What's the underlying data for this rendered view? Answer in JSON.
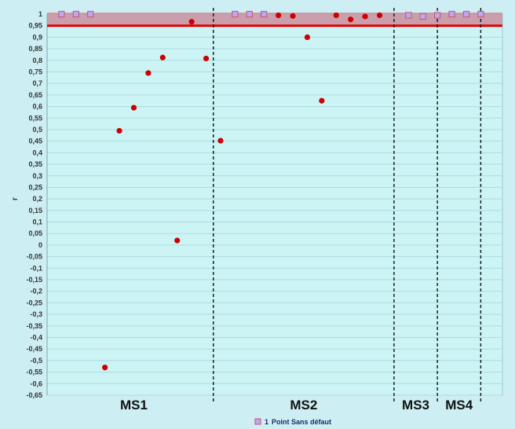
{
  "chart_data": {
    "type": "scatter",
    "title": "",
    "xlabel": "",
    "ylabel": "r",
    "ylim": [
      -0.65,
      1.0
    ],
    "ytick_step": 0.05,
    "grid": true,
    "threshold": 0.95,
    "band": [
      0.95,
      1.0
    ],
    "colors": {
      "background": "#cdeef3",
      "grid": "#a9dbe2",
      "band": "#c98e9c",
      "threshold": "#e00000",
      "faulty_point": "#cc0000",
      "ok_marker_fill": "#b9a8f2",
      "ok_marker_stroke": "#d0506e"
    },
    "sections": [
      {
        "label": "MS1",
        "start": 0.5,
        "end": 11.5
      },
      {
        "label": "MS2",
        "start": 11.5,
        "end": 24
      },
      {
        "label": "MS3",
        "start": 24,
        "end": 27
      },
      {
        "label": "MS4",
        "start": 27,
        "end": 30
      }
    ],
    "series": [
      {
        "role": "faulty",
        "marker": "circle",
        "x": [
          4,
          5,
          6,
          7,
          8,
          9,
          10,
          11,
          12,
          16,
          17,
          18,
          19,
          20,
          21,
          22,
          23
        ],
        "y": [
          -0.53,
          0.495,
          0.595,
          0.745,
          0.812,
          0.02,
          0.967,
          0.808,
          0.452,
          0.995,
          0.992,
          0.9,
          0.625,
          0.995,
          0.977,
          0.99,
          0.995
        ]
      },
      {
        "role": "ok",
        "name": "Point Sans défaut",
        "marker": "square",
        "x": [
          1,
          2,
          3,
          13,
          14,
          15,
          25,
          26,
          27,
          28,
          29,
          30
        ],
        "y": [
          1.0,
          1.0,
          1.0,
          1.0,
          1.0,
          1.0,
          0.995,
          0.99,
          0.995,
          1.0,
          1.0,
          1.0
        ]
      }
    ],
    "legend": {
      "position": "bottom-center",
      "number": "1",
      "label": "Point Sans défaut"
    }
  }
}
